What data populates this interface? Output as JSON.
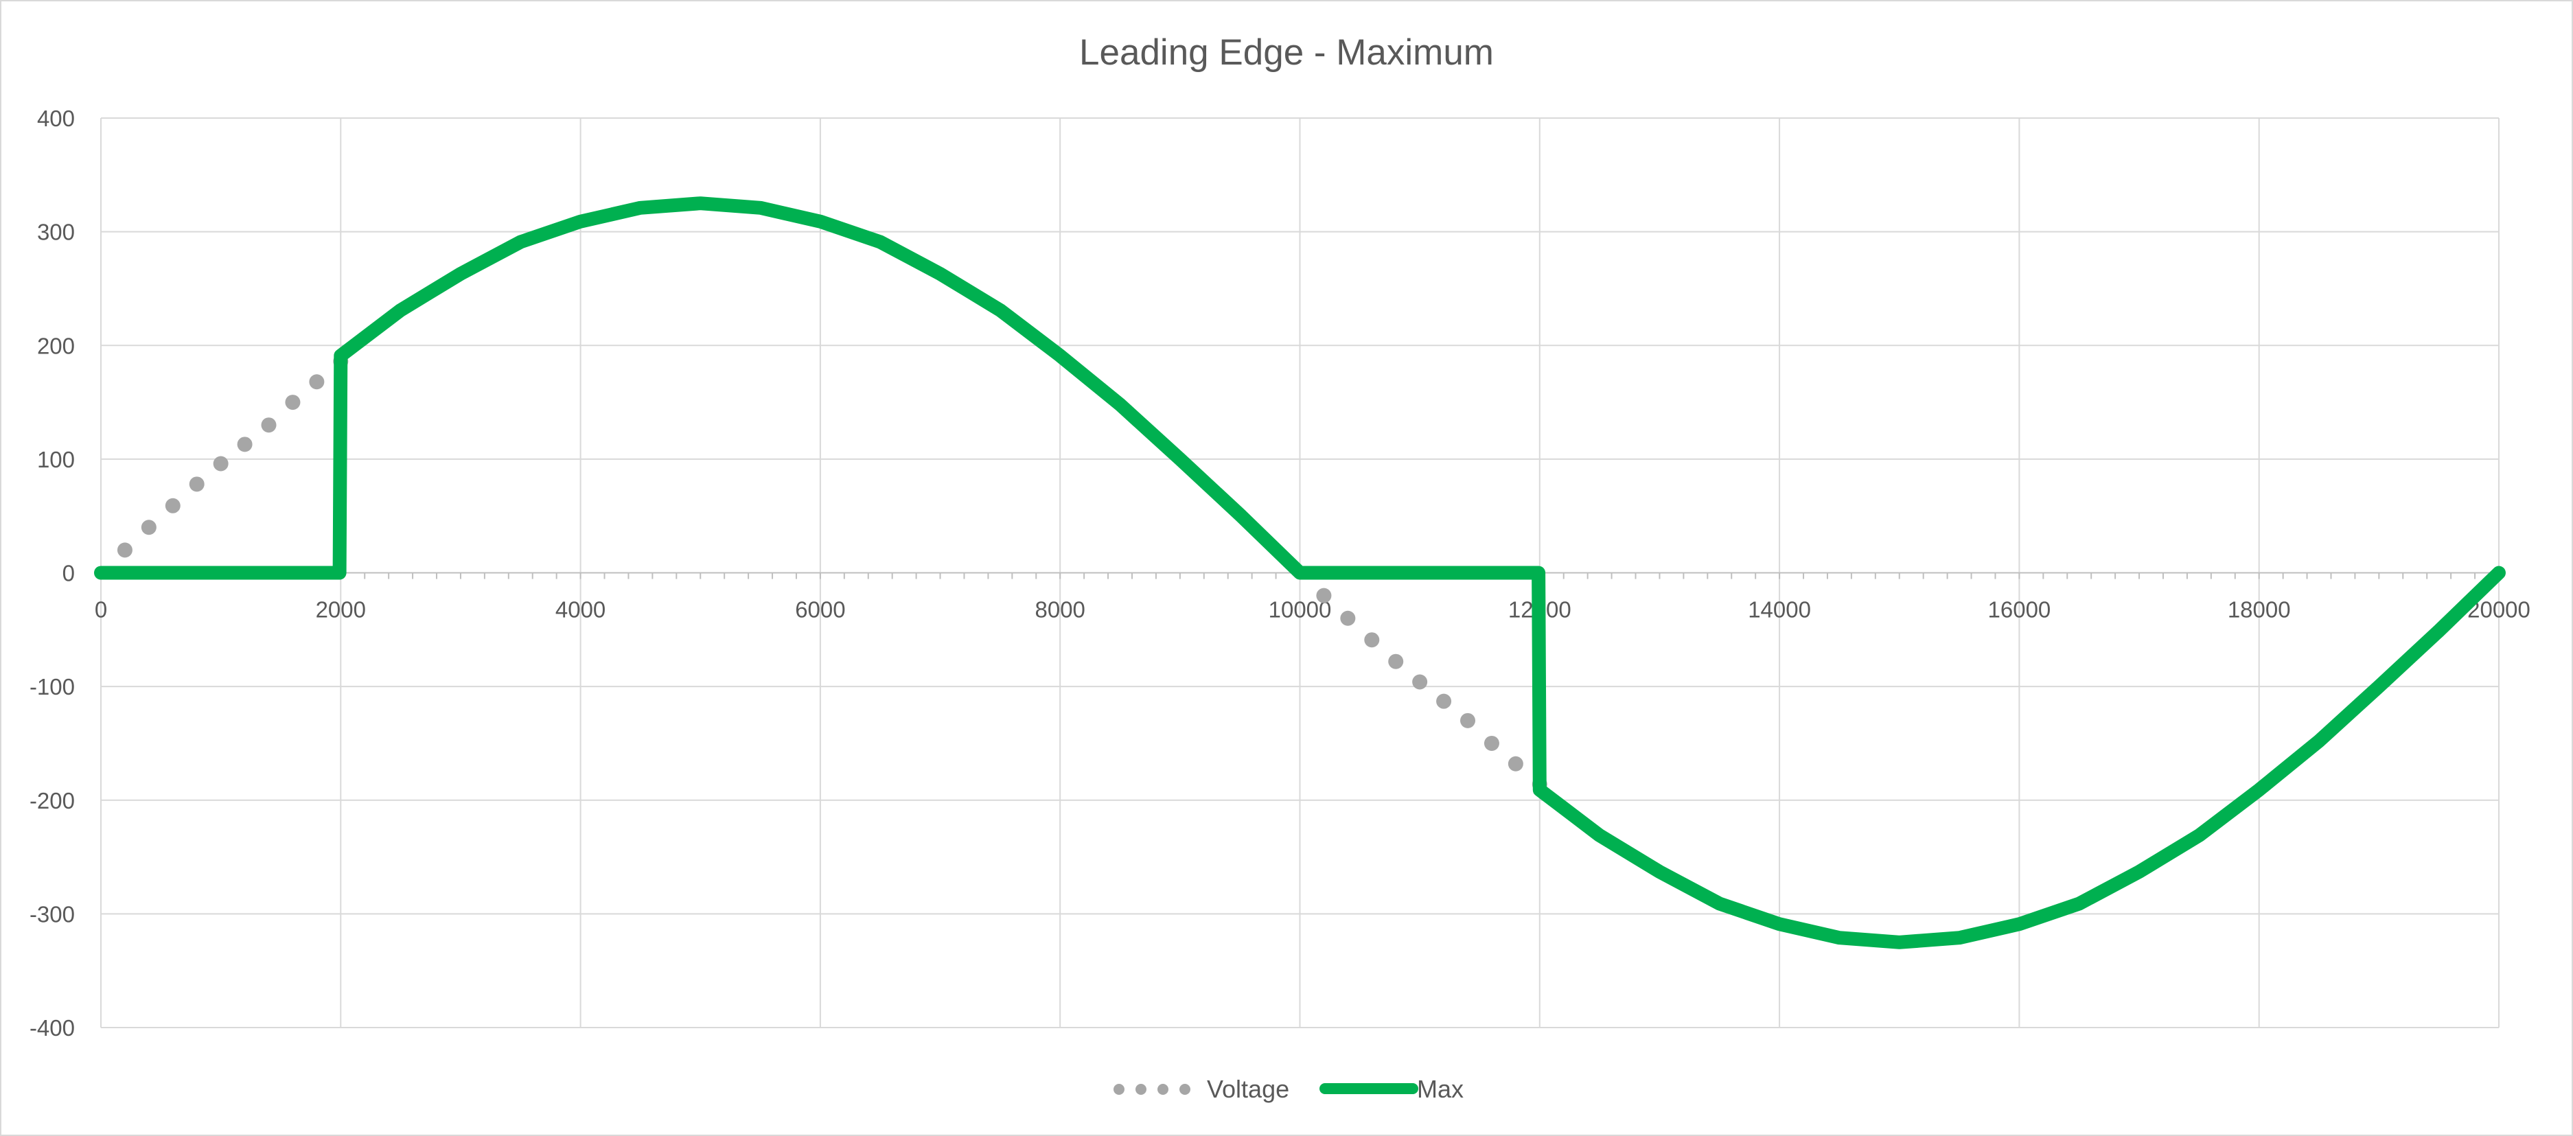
{
  "chart_data": {
    "type": "line",
    "title": "Leading Edge - Maximum",
    "xlabel": "",
    "ylabel": "",
    "xlim": [
      0,
      20000
    ],
    "ylim": [
      -400,
      400
    ],
    "x_ticks": [
      0,
      2000,
      4000,
      6000,
      8000,
      10000,
      12000,
      14000,
      16000,
      18000,
      20000
    ],
    "y_ticks": [
      400,
      300,
      200,
      100,
      0,
      -100,
      -200,
      -300,
      -400
    ],
    "grid": true,
    "legend_position": "bottom",
    "series": [
      {
        "name": "Voltage",
        "style": "dotted",
        "color": "#a6a6a6",
        "x": [
          0,
          200,
          400,
          600,
          800,
          1000,
          1200,
          1400,
          1600,
          1800,
          2000,
          10000,
          10200,
          10400,
          10600,
          10800,
          11000,
          11200,
          11400,
          11600,
          11800,
          12000
        ],
        "y": [
          0,
          20,
          40,
          59,
          78,
          96,
          113,
          130,
          150,
          168,
          186,
          0,
          -20,
          -40,
          -59,
          -78,
          -96,
          -113,
          -130,
          -150,
          -168,
          -186
        ]
      },
      {
        "name": "Max",
        "style": "solid",
        "color": "#00b050",
        "x": [
          0,
          1990,
          2000,
          2500,
          3000,
          3500,
          4000,
          4500,
          5000,
          5500,
          6000,
          6500,
          7000,
          7500,
          8000,
          8500,
          9000,
          9500,
          10000,
          11990,
          12000,
          12500,
          13000,
          13500,
          14000,
          14500,
          15000,
          15500,
          16000,
          16500,
          17000,
          17500,
          18000,
          18500,
          19000,
          19500,
          20000
        ],
        "y": [
          0,
          0,
          191,
          231,
          263,
          291,
          309,
          321,
          325,
          321,
          309,
          291,
          263,
          231,
          191,
          148,
          100,
          51,
          0,
          0,
          -191,
          -231,
          -263,
          -291,
          -309,
          -321,
          -325,
          -321,
          -309,
          -291,
          -263,
          -231,
          -191,
          -148,
          -100,
          -51,
          0
        ]
      }
    ]
  }
}
